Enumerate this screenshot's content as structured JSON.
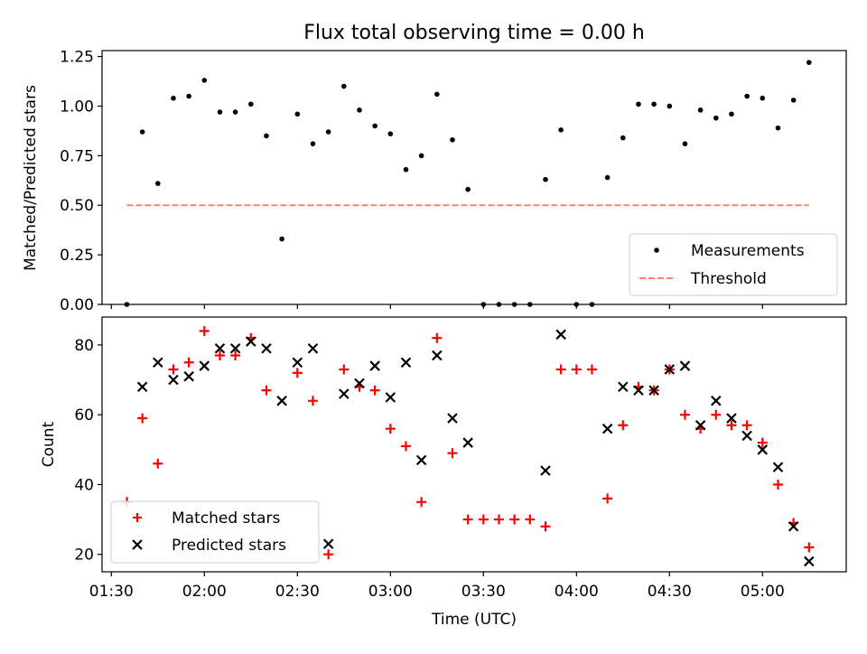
{
  "chart_data": [
    {
      "type": "scatter",
      "title": "Flux total observing time = 0.00 h",
      "ylabel": "Matched/Predicted stars",
      "xlabel": "",
      "ylim": [
        0,
        1.28
      ],
      "yticks": [
        0.0,
        0.25,
        0.5,
        0.75,
        1.0,
        1.25
      ],
      "ytick_labels": [
        "0.00",
        "0.25",
        "0.50",
        "0.75",
        "1.00",
        "1.25"
      ],
      "legend": "bottom-right",
      "series": [
        {
          "name": "Measurements",
          "color": "#000000",
          "marker": "dot",
          "x": [
            "01:35",
            "01:40",
            "01:45",
            "01:50",
            "01:55",
            "02:00",
            "02:05",
            "02:10",
            "02:15",
            "02:20",
            "02:25",
            "02:30",
            "02:35",
            "02:40",
            "02:45",
            "02:50",
            "02:55",
            "03:00",
            "03:05",
            "03:10",
            "03:15",
            "03:20",
            "03:25",
            "03:30",
            "03:35",
            "03:40",
            "03:45",
            "03:50",
            "03:55",
            "04:00",
            "04:05",
            "04:10",
            "04:15",
            "04:20",
            "04:25",
            "04:30",
            "04:35",
            "04:40",
            "04:45",
            "04:50",
            "04:55",
            "05:00",
            "05:05",
            "05:10",
            "05:15"
          ],
          "y": [
            0.0,
            0.87,
            0.61,
            1.04,
            1.05,
            1.13,
            0.97,
            0.97,
            1.01,
            0.85,
            0.33,
            0.96,
            0.81,
            0.87,
            1.1,
            0.98,
            0.9,
            0.86,
            0.68,
            0.75,
            1.06,
            0.83,
            0.58,
            0.0,
            0.0,
            0.0,
            0.0,
            0.63,
            0.88,
            0.0,
            0.0,
            0.64,
            0.84,
            1.01,
            1.01,
            1.0,
            0.81,
            0.98,
            0.94,
            0.96,
            1.05,
            1.04,
            0.89,
            1.03,
            1.22
          ]
        },
        {
          "name": "Threshold",
          "color": "#ff7f7f",
          "style": "dashed",
          "x": [
            "01:35",
            "05:15"
          ],
          "y": [
            0.5,
            0.5
          ]
        }
      ]
    },
    {
      "type": "scatter",
      "title": "",
      "ylabel": "Count",
      "xlabel": "Time (UTC)",
      "ylim": [
        15,
        88
      ],
      "yticks": [
        20,
        40,
        60,
        80
      ],
      "ytick_labels": [
        "20",
        "40",
        "60",
        "80"
      ],
      "xlim": [
        "01:27",
        "05:27"
      ],
      "xticks": [
        "01:30",
        "02:00",
        "02:30",
        "03:00",
        "03:30",
        "04:00",
        "04:30",
        "05:00"
      ],
      "xtick_labels": [
        "01:30",
        "02:00",
        "02:30",
        "03:00",
        "03:30",
        "04:00",
        "04:30",
        "05:00"
      ],
      "legend": "bottom-left",
      "series": [
        {
          "name": "Matched stars",
          "color": "#ff0000",
          "marker": "plus",
          "x": [
            "01:35",
            "01:40",
            "01:45",
            "01:50",
            "01:55",
            "02:00",
            "02:05",
            "02:10",
            "02:15",
            "02:20",
            "02:30",
            "02:35",
            "02:40",
            "02:45",
            "02:50",
            "02:55",
            "03:00",
            "03:05",
            "03:10",
            "03:15",
            "03:20",
            "03:25",
            "03:30",
            "03:35",
            "03:40",
            "03:45",
            "03:50",
            "03:55",
            "04:00",
            "04:05",
            "04:10",
            "04:15",
            "04:20",
            "04:25",
            "04:30",
            "04:35",
            "04:40",
            "04:45",
            "04:50",
            "04:55",
            "05:00",
            "05:05",
            "05:10",
            "05:15"
          ],
          "y": [
            35,
            59,
            46,
            73,
            75,
            84,
            77,
            77,
            82,
            67,
            72,
            64,
            20,
            73,
            68,
            67,
            56,
            51,
            35,
            82,
            49,
            30,
            30,
            30,
            30,
            30,
            28,
            73,
            73,
            73,
            36,
            57,
            68,
            67,
            73,
            60,
            56,
            60,
            57,
            57,
            52,
            40,
            29,
            22
          ]
        },
        {
          "name": "Predicted stars",
          "color": "#000000",
          "marker": "x",
          "x": [
            "01:40",
            "01:45",
            "01:50",
            "01:55",
            "02:00",
            "02:05",
            "02:10",
            "02:15",
            "02:20",
            "02:25",
            "02:30",
            "02:35",
            "02:40",
            "02:45",
            "02:50",
            "02:55",
            "03:00",
            "03:05",
            "03:10",
            "03:15",
            "03:20",
            "03:25",
            "03:50",
            "03:55",
            "04:10",
            "04:15",
            "04:20",
            "04:25",
            "04:30",
            "04:35",
            "04:40",
            "04:45",
            "04:50",
            "04:55",
            "05:00",
            "05:05",
            "05:10",
            "05:15"
          ],
          "y": [
            68,
            75,
            70,
            71,
            74,
            79,
            79,
            81,
            79,
            64,
            75,
            79,
            23,
            66,
            69,
            74,
            65,
            75,
            47,
            77,
            59,
            52,
            44,
            83,
            56,
            68,
            67,
            67,
            73,
            74,
            57,
            64,
            59,
            54,
            50,
            45,
            28,
            18
          ]
        }
      ]
    }
  ]
}
